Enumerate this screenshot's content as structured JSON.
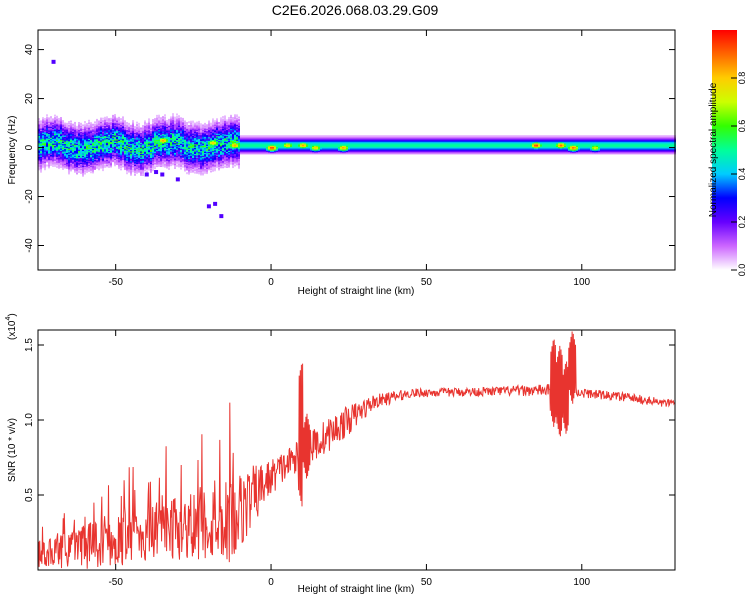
{
  "title": "C2E6.2026.068.03.29.G09",
  "chart_data": [
    {
      "type": "heatmap",
      "name": "spectrogram",
      "xlabel": "Height of straight line (km)",
      "ylabel": "Frequency (Hz)",
      "xlim": [
        -75,
        130
      ],
      "ylim": [
        -50,
        48
      ],
      "xticks": [
        -50,
        0,
        50,
        100
      ],
      "yticks": [
        40,
        20,
        0,
        -20,
        -40
      ],
      "colorbar": {
        "label": "Normalized spectral amplitude",
        "range": [
          0,
          1
        ],
        "ticks": [
          0.0,
          0.2,
          0.4,
          0.6,
          0.8
        ],
        "tick_labels": [
          "0.0",
          "0.2",
          "0.4",
          "0.6",
          "0.8"
        ],
        "colors": [
          "#ffffff",
          "#cc66ff",
          "#6600ff",
          "#0000ff",
          "#00ccff",
          "#00ff99",
          "#33ff00",
          "#ccff00",
          "#ffcc00",
          "#ff6600",
          "#ff0000"
        ]
      },
      "ridge": {
        "frequency_hz": 1,
        "segments": [
          {
            "x_start": -75,
            "x_end": -10,
            "width_hz": 8,
            "level": 0.45
          },
          {
            "x_start": -10,
            "x_end": 130,
            "width_hz": 3,
            "level": 0.5
          }
        ],
        "hotspots": [
          {
            "x": -35,
            "y": 3,
            "level": 0.85
          },
          {
            "x": -19,
            "y": 2,
            "level": 0.8
          },
          {
            "x": -12,
            "y": 1,
            "level": 0.85
          },
          {
            "x": 0,
            "y": 0,
            "level": 0.95
          },
          {
            "x": 5,
            "y": 1,
            "level": 0.8
          },
          {
            "x": 10,
            "y": 1,
            "level": 0.85
          },
          {
            "x": 14,
            "y": 0,
            "level": 0.8
          },
          {
            "x": 23,
            "y": 0,
            "level": 0.85
          },
          {
            "x": 85,
            "y": 1,
            "level": 0.95
          },
          {
            "x": 93,
            "y": 1,
            "level": 0.9
          },
          {
            "x": 97,
            "y": 0,
            "level": 0.9
          },
          {
            "x": 104,
            "y": 0,
            "level": 0.75
          }
        ],
        "scatter_points": [
          {
            "x": -37,
            "y": -10
          },
          {
            "x": -35,
            "y": -11
          },
          {
            "x": -40,
            "y": -11
          },
          {
            "x": -18,
            "y": -23
          },
          {
            "x": -20,
            "y": -24
          },
          {
            "x": -16,
            "y": -28
          },
          {
            "x": -30,
            "y": -13
          },
          {
            "x": -70,
            "y": 35
          }
        ]
      }
    },
    {
      "type": "line",
      "name": "snr",
      "xlabel": "Height of straight line (km)",
      "ylabel": "SNR (10 * v/v)",
      "y_multiplier": "(x10",
      "y_multiplier_exp": "4",
      "y_multiplier_close": ")",
      "xlim": [
        -75,
        130
      ],
      "ylim": [
        0,
        1.6
      ],
      "xticks": [
        -50,
        0,
        50,
        100
      ],
      "yticks": [
        0.5,
        1.0,
        1.5
      ],
      "ytick_labels": [
        "0.5",
        "1.0",
        "1.5"
      ],
      "color": "#e8342f",
      "trend": [
        {
          "x": -75,
          "y": 0.1,
          "amp": 0.08
        },
        {
          "x": -60,
          "y": 0.15,
          "amp": 0.15
        },
        {
          "x": -45,
          "y": 0.22,
          "amp": 0.18
        },
        {
          "x": -30,
          "y": 0.28,
          "amp": 0.22
        },
        {
          "x": -12,
          "y": 0.35,
          "amp": 0.3
        },
        {
          "x": 0,
          "y": 0.62,
          "amp": 0.12
        },
        {
          "x": 8,
          "y": 0.75,
          "amp": 0.1
        },
        {
          "x": 15,
          "y": 0.85,
          "amp": 0.12
        },
        {
          "x": 25,
          "y": 1.0,
          "amp": 0.1
        },
        {
          "x": 33,
          "y": 1.12,
          "amp": 0.05
        },
        {
          "x": 45,
          "y": 1.18,
          "amp": 0.03
        },
        {
          "x": 70,
          "y": 1.19,
          "amp": 0.03
        },
        {
          "x": 90,
          "y": 1.2,
          "amp": 0.04
        },
        {
          "x": 100,
          "y": 1.18,
          "amp": 0.03
        },
        {
          "x": 115,
          "y": 1.15,
          "amp": 0.03
        },
        {
          "x": 130,
          "y": 1.1,
          "amp": 0.03
        }
      ],
      "events": [
        {
          "x": 10,
          "peak": 1.39,
          "trough": 0.42,
          "label": "spike"
        },
        {
          "x": 11.5,
          "peak": 1.05,
          "trough": 0.6,
          "label": "spike"
        },
        {
          "x": 91,
          "peak": 1.55,
          "trough": 0.95,
          "label": "spike"
        },
        {
          "x": 93,
          "peak": 1.5,
          "trough": 0.88,
          "label": "spike"
        },
        {
          "x": 95,
          "peak": 1.4,
          "trough": 0.9,
          "label": "spike"
        },
        {
          "x": 97,
          "peak": 1.6,
          "trough": 1.1,
          "label": "spike"
        }
      ]
    }
  ]
}
